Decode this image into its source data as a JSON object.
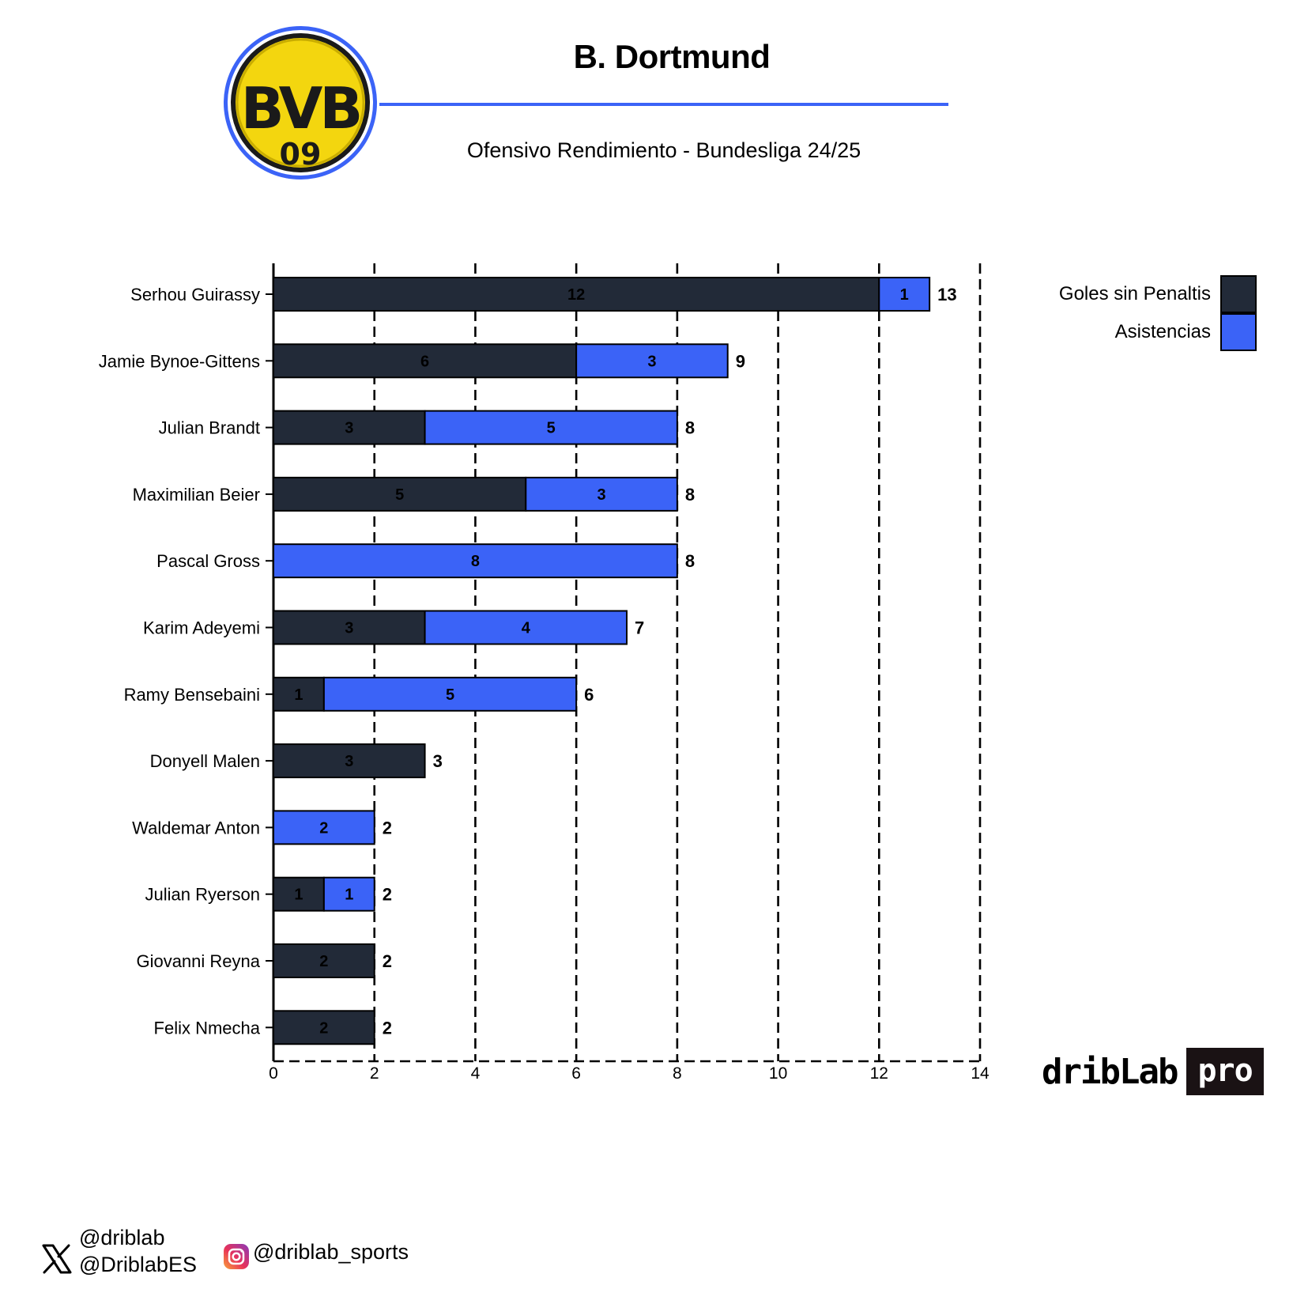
{
  "header": {
    "title": "B. Dortmund",
    "subtitle": "Ofensivo Rendimiento - Bundesliga 24/25",
    "logo": {
      "icon": "bvb-crest-icon",
      "text_top": "BVB",
      "text_bottom": "09",
      "fill": "#f3d60f",
      "ring": "#3b63f7"
    }
  },
  "colors": {
    "goals": "#222a38",
    "assists": "#3b63f7",
    "accent": "#3b63f7"
  },
  "legend": {
    "goals_label": "Goles sin Penaltis",
    "assists_label": "Asistencias",
    "placement": "top-right"
  },
  "chart_data": {
    "type": "bar",
    "orientation": "horizontal",
    "stacked": true,
    "categories": [
      "Serhou Guirassy",
      "Jamie Bynoe-Gittens",
      "Julian Brandt",
      "Maximilian Beier",
      "Pascal Gross",
      "Karim Adeyemi",
      "Ramy Bensebaini",
      "Donyell Malen",
      "Waldemar Anton",
      "Julian Ryerson",
      "Giovanni Reyna",
      "Felix Nmecha"
    ],
    "series": [
      {
        "name": "Goles sin Penaltis",
        "values": [
          12,
          6,
          3,
          5,
          0,
          3,
          1,
          3,
          0,
          1,
          2,
          2
        ]
      },
      {
        "name": "Asistencias",
        "values": [
          1,
          3,
          5,
          3,
          8,
          4,
          5,
          0,
          2,
          1,
          0,
          0
        ]
      }
    ],
    "totals": [
      13,
      9,
      8,
      8,
      8,
      7,
      6,
      3,
      2,
      2,
      2,
      2
    ],
    "xlim": [
      0,
      14
    ],
    "xticks": [
      "0",
      "2",
      "4",
      "6",
      "8",
      "10",
      "12",
      "14"
    ],
    "grid": true,
    "xlabel": "",
    "ylabel": ""
  },
  "brand": {
    "word": "dribLab",
    "badge": "pro"
  },
  "footer": {
    "x_icon": "x-twitter-icon",
    "x_handle_1": "@driblab",
    "x_handle_2": "@DriblabES",
    "instagram_icon": "instagram-icon",
    "instagram_handle": "@driblab_sports"
  }
}
